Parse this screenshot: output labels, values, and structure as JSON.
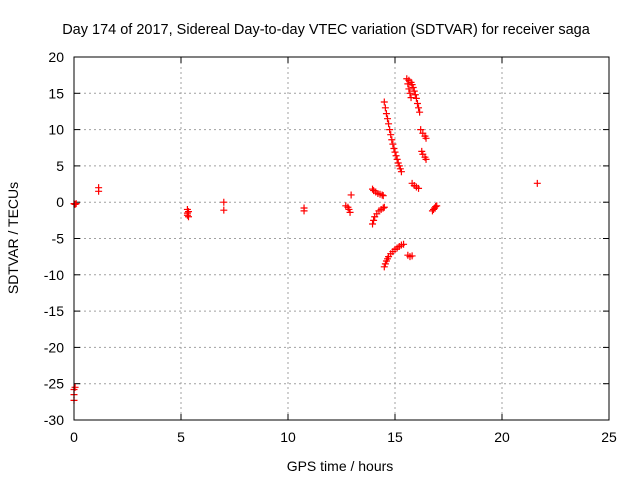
{
  "chart_data": {
    "type": "scatter",
    "title": "Day 174 of 2017, Sidereal Day-to-day VTEC variation (SDTVAR) for receiver saga",
    "xlabel": "GPS time / hours",
    "ylabel": "SDTVAR / TECUs",
    "xlim": [
      0,
      25
    ],
    "ylim": [
      -30,
      20
    ],
    "xticks": [
      0,
      5,
      10,
      15,
      20,
      25
    ],
    "yticks": [
      20,
      15,
      10,
      5,
      0,
      -5,
      -10,
      -15,
      -20,
      -25,
      -30
    ],
    "grid": true,
    "marker": "+",
    "color": "#ff0000",
    "series": [
      {
        "points": [
          [
            0.0,
            -0.2
          ],
          [
            0.05,
            -0.3
          ],
          [
            0.1,
            -0.2
          ],
          [
            0.0,
            -25.8
          ],
          [
            0.0,
            -26.5
          ],
          [
            0.0,
            -27.3
          ],
          [
            0.05,
            -25.5
          ],
          [
            1.15,
            2.0
          ],
          [
            1.15,
            1.5
          ],
          [
            5.3,
            -1.0
          ],
          [
            5.35,
            -1.3
          ],
          [
            5.3,
            -1.8
          ],
          [
            5.35,
            -2.0
          ],
          [
            5.3,
            -1.5
          ],
          [
            7.0,
            0.0
          ],
          [
            7.0,
            -1.1
          ],
          [
            10.75,
            -0.8
          ],
          [
            10.75,
            -1.2
          ],
          [
            12.7,
            -0.5
          ],
          [
            12.8,
            -0.7
          ],
          [
            12.85,
            -1.0
          ],
          [
            12.9,
            -1.4
          ],
          [
            12.95,
            1.0
          ],
          [
            13.95,
            -3.0
          ],
          [
            14.0,
            -2.5
          ],
          [
            14.05,
            -2.0
          ],
          [
            14.15,
            -1.6
          ],
          [
            14.25,
            -1.2
          ],
          [
            14.35,
            -1.0
          ],
          [
            14.45,
            -0.8
          ],
          [
            14.5,
            -0.7
          ],
          [
            13.95,
            1.8
          ],
          [
            14.0,
            1.6
          ],
          [
            14.1,
            1.4
          ],
          [
            14.2,
            1.2
          ],
          [
            14.3,
            1.1
          ],
          [
            14.4,
            1.0
          ],
          [
            14.45,
            0.9
          ],
          [
            14.5,
            13.8
          ],
          [
            14.55,
            13.0
          ],
          [
            14.6,
            12.2
          ],
          [
            14.65,
            11.5
          ],
          [
            14.7,
            10.8
          ],
          [
            14.75,
            10.0
          ],
          [
            14.8,
            9.3
          ],
          [
            14.85,
            8.6
          ],
          [
            14.9,
            8.0
          ],
          [
            14.95,
            7.4
          ],
          [
            15.0,
            6.9
          ],
          [
            15.05,
            6.4
          ],
          [
            15.1,
            5.9
          ],
          [
            15.15,
            5.4
          ],
          [
            15.2,
            5.0
          ],
          [
            15.25,
            4.6
          ],
          [
            15.3,
            4.2
          ],
          [
            14.5,
            -8.9
          ],
          [
            14.55,
            -8.5
          ],
          [
            14.6,
            -8.1
          ],
          [
            14.65,
            -7.8
          ],
          [
            14.7,
            -7.5
          ],
          [
            14.8,
            -7.1
          ],
          [
            14.9,
            -6.8
          ],
          [
            15.0,
            -6.5
          ],
          [
            15.1,
            -6.3
          ],
          [
            15.2,
            -6.1
          ],
          [
            15.3,
            -5.9
          ],
          [
            15.4,
            -5.8
          ],
          [
            15.55,
            17.0
          ],
          [
            15.6,
            16.3
          ],
          [
            15.65,
            15.6
          ],
          [
            15.7,
            15.0
          ],
          [
            15.75,
            14.4
          ],
          [
            15.65,
            16.8
          ],
          [
            15.75,
            16.5
          ],
          [
            15.8,
            16.2
          ],
          [
            15.85,
            15.8
          ],
          [
            15.9,
            15.3
          ],
          [
            15.95,
            14.8
          ],
          [
            16.0,
            14.3
          ],
          [
            16.05,
            13.6
          ],
          [
            16.1,
            13.0
          ],
          [
            16.15,
            12.4
          ],
          [
            16.2,
            10.0
          ],
          [
            16.3,
            9.5
          ],
          [
            16.4,
            9.1
          ],
          [
            16.45,
            8.8
          ],
          [
            16.25,
            7.0
          ],
          [
            16.3,
            6.6
          ],
          [
            16.4,
            6.2
          ],
          [
            16.45,
            5.9
          ],
          [
            15.8,
            2.6
          ],
          [
            15.9,
            2.3
          ],
          [
            16.0,
            2.1
          ],
          [
            16.1,
            1.9
          ],
          [
            15.6,
            -7.3
          ],
          [
            15.7,
            -7.5
          ],
          [
            15.8,
            -7.4
          ],
          [
            16.75,
            -1.2
          ],
          [
            16.8,
            -1.0
          ],
          [
            16.85,
            -0.8
          ],
          [
            16.9,
            -0.6
          ],
          [
            16.95,
            -0.5
          ],
          [
            21.65,
            2.6
          ]
        ]
      }
    ]
  }
}
